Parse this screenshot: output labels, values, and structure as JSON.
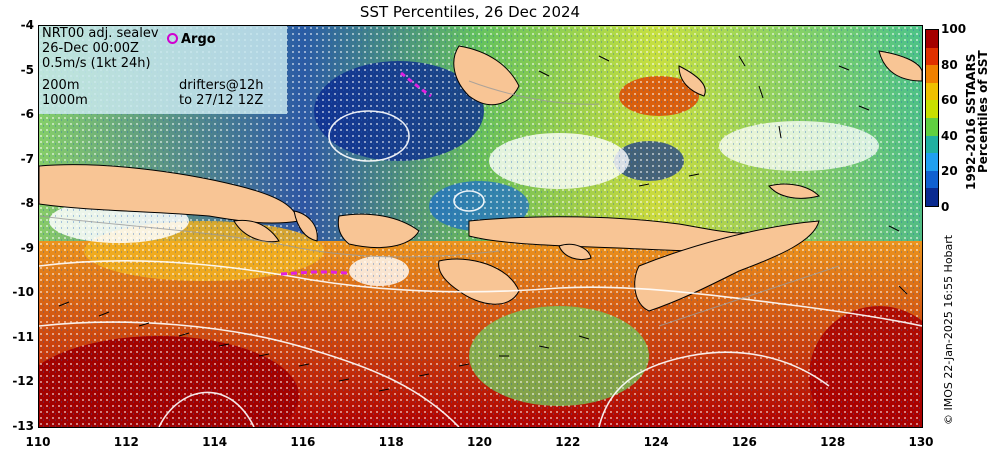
{
  "title": "SST Percentiles, 26 Dec 2024",
  "map": {
    "type": "sst-percentile-map",
    "lon_range": [
      110,
      130
    ],
    "lat_range": [
      -13,
      -4
    ],
    "x_ticks": [
      "110",
      "112",
      "114",
      "116",
      "118",
      "120",
      "122",
      "124",
      "126",
      "128",
      "130"
    ],
    "y_ticks": [
      "-4",
      "-5",
      "-6",
      "-7",
      "-8",
      "-9",
      "-10",
      "-11",
      "-12",
      "-13"
    ],
    "land_color": "#f8c595"
  },
  "legend": {
    "line1": "NRT00 adj. sealev",
    "line2": "26-Dec 00:00Z",
    "line3": "0.5m/s (1kt 24h)",
    "line4": "200m",
    "line5": "1000m",
    "argo_label": "Argo",
    "drifters_line1": "drifters@12h",
    "drifters_line2": "to 27/12 12Z"
  },
  "colorbar": {
    "ticks": [
      "100",
      "80",
      "60",
      "40",
      "20",
      "0"
    ],
    "colors": [
      "#a50000",
      "#e03000",
      "#f08000",
      "#f0c000",
      "#c8e000",
      "#60d040",
      "#20b0a0",
      "#20a0f0",
      "#1060d0",
      "#0a2a90"
    ],
    "label_line1": "1992-2016 SSTAARS",
    "label_line2": "Percentiles of SST"
  },
  "credit": "© IMOS 22-Jan-2025 16:55 Hobart"
}
